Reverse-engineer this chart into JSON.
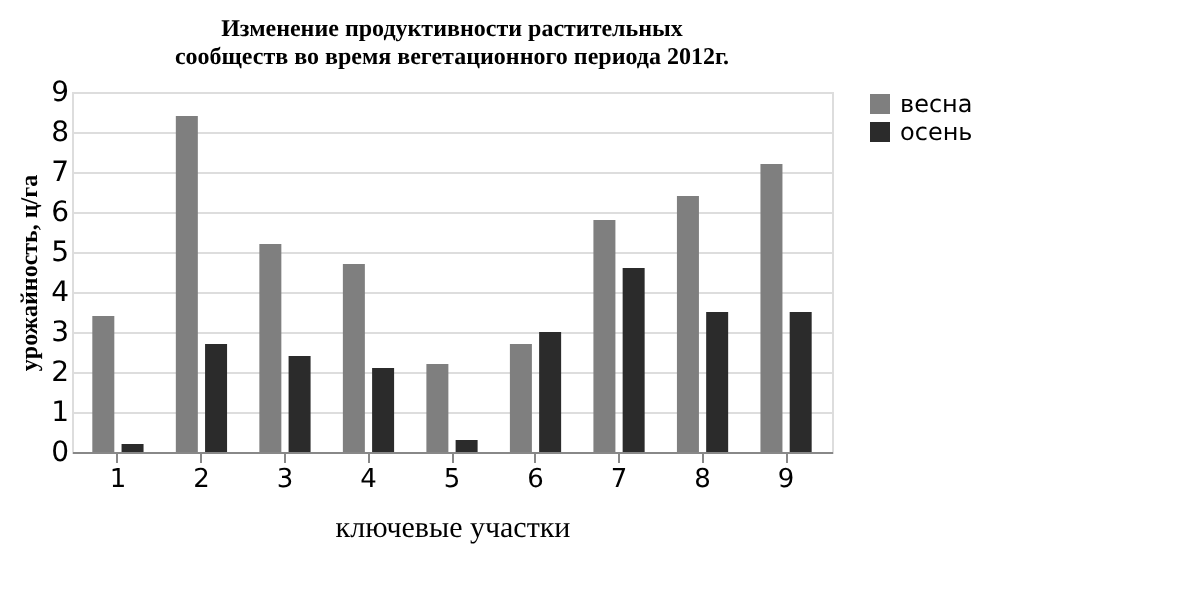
{
  "chart_data": {
    "type": "bar",
    "title": "Изменение продуктивности растительных\nсообществ во время вегетационного периода 2012г.",
    "xlabel": "ключевые участки",
    "ylabel": "урожайность, ц/га",
    "categories": [
      "1",
      "2",
      "3",
      "4",
      "5",
      "6",
      "7",
      "8",
      "9"
    ],
    "series": [
      {
        "name": "весна",
        "color": "#7f7f7f",
        "values": [
          3.4,
          8.4,
          5.2,
          4.7,
          2.2,
          2.7,
          5.8,
          6.4,
          7.2
        ]
      },
      {
        "name": "осень",
        "color": "#2b2b2b",
        "values": [
          0.2,
          2.7,
          2.4,
          2.1,
          0.3,
          3.0,
          4.6,
          3.5,
          3.5
        ]
      }
    ],
    "ylim": [
      0,
      9
    ],
    "yticks": [
      0,
      1,
      2,
      3,
      4,
      5,
      6,
      7,
      8,
      9
    ],
    "grid": "y",
    "legend": "right"
  }
}
